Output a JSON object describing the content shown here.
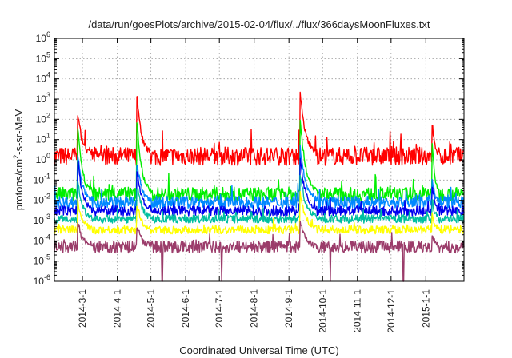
{
  "chart_data": {
    "type": "line",
    "title": "/data/run/goesPlots/archive/2015-02-04/flux/../flux/366daysMoonFluxes.txt",
    "xlabel": "Coordinated Universal Time (UTC)",
    "ylabel_main": "protons/cm",
    "ylabel_sup": "2",
    "ylabel_rest": "-s-sr-MeV",
    "xlim": [
      "2014-02-04",
      "2015-02-04"
    ],
    "ylim": [
      1e-06,
      1000000.0
    ],
    "yscale": "log",
    "grid": true,
    "x_ticks": [
      {
        "date": "2014-03-01",
        "label": "2014-3-1"
      },
      {
        "date": "2014-04-01",
        "label": "2014-4-1"
      },
      {
        "date": "2014-05-01",
        "label": "2014-5-1"
      },
      {
        "date": "2014-06-01",
        "label": "2014-6-1"
      },
      {
        "date": "2014-07-01",
        "label": "2014-7-1"
      },
      {
        "date": "2014-08-01",
        "label": "2014-8-1"
      },
      {
        "date": "2014-09-01",
        "label": "2014-9-1"
      },
      {
        "date": "2014-10-01",
        "label": "2014-10-1"
      },
      {
        "date": "2014-11-01",
        "label": "2014-11-1"
      },
      {
        "date": "2014-12-01",
        "label": "2014-12-1"
      },
      {
        "date": "2015-01-01",
        "label": "2015-1-1"
      }
    ],
    "y_ticks": [
      {
        "value": 1e-06,
        "exp": "-6"
      },
      {
        "value": 1e-05,
        "exp": "-5"
      },
      {
        "value": 0.0001,
        "exp": "-4"
      },
      {
        "value": 0.001,
        "exp": "-3"
      },
      {
        "value": 0.01,
        "exp": "-2"
      },
      {
        "value": 0.1,
        "exp": "-1"
      },
      {
        "value": 1.0,
        "exp": "0"
      },
      {
        "value": 10.0,
        "exp": "1"
      },
      {
        "value": 100.0,
        "exp": "2"
      },
      {
        "value": 1000.0,
        "exp": "3"
      },
      {
        "value": 10000.0,
        "exp": "4"
      },
      {
        "value": 100000.0,
        "exp": "5"
      },
      {
        "value": 1000000.0,
        "exp": "6"
      }
    ],
    "series": [
      {
        "color": "#ff0000",
        "baseline": 1.5,
        "noise": 0.45,
        "peak_levels": [
          5,
          200,
          1000,
          30,
          10,
          60,
          2000,
          20,
          15,
          10,
          50,
          20
        ]
      },
      {
        "color": "#00ee00",
        "baseline": 0.02,
        "noise": 0.35,
        "peak_levels": [
          0.2,
          30,
          50,
          0.5,
          0.2,
          3,
          100,
          1,
          1,
          0.5,
          5,
          1
        ]
      },
      {
        "color": "#0088ff",
        "baseline": 0.008,
        "noise": 0.3,
        "peak_levels": [
          0.05,
          2,
          0.5,
          0.1,
          0.05,
          0.5,
          5,
          0.1,
          0.05,
          0.05,
          0.1,
          0.05
        ]
      },
      {
        "color": "#0000ee",
        "baseline": 0.003,
        "noise": 0.25,
        "peak_levels": [
          0.02,
          1,
          0.2,
          0.05,
          0.01,
          0.1,
          1,
          0.02,
          0.01,
          0.01,
          0.05,
          0.01
        ]
      },
      {
        "color": "#00bfa0",
        "baseline": 0.0012,
        "noise": 0.2,
        "peak_levels": [
          0.005,
          0.1,
          0.05,
          0.01,
          0.005,
          0.03,
          0.2,
          0.005,
          0.005,
          0.005,
          0.01,
          0.005
        ]
      },
      {
        "color": "#ffff00",
        "baseline": 0.00035,
        "noise": 0.2,
        "peak_levels": [
          0.001,
          0.01,
          0.005,
          0.002,
          0.001,
          0.003,
          0.02,
          0.001,
          0.001,
          0.001,
          0.002,
          0.001
        ]
      },
      {
        "color": "#9b3c6a",
        "baseline": 5e-05,
        "noise": 0.3,
        "peak_levels": [
          0.0001,
          0.0008,
          0.0005,
          0.0002,
          0.0001,
          0.0002,
          0.0008,
          0.0001,
          0.0001,
          0.0001,
          0.0002,
          0.0001
        ]
      }
    ],
    "events": [
      {
        "date": "2014-02-25",
        "width_days": 4
      },
      {
        "date": "2014-04-19",
        "width_days": 4
      },
      {
        "date": "2014-09-11",
        "width_days": 5
      },
      {
        "date": "2015-01-07",
        "width_days": 2
      }
    ],
    "dropouts": [
      {
        "date": "2014-05-11",
        "to": 1e-06
      },
      {
        "date": "2014-07-03",
        "to": 1e-06
      },
      {
        "date": "2014-10-08",
        "to": 1e-06
      },
      {
        "date": "2014-12-12",
        "to": 1e-06
      }
    ]
  }
}
